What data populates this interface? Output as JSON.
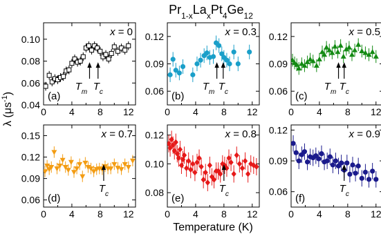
{
  "figure": {
    "title_main": "Pr",
    "title_sub1": "1-x",
    "title_mid1": "La",
    "title_sub2": "x",
    "title_mid2": "Pt",
    "title_sub3": "4",
    "title_mid3": "Ge",
    "title_sub4": "12",
    "ylabel_main": "λ (μs",
    "ylabel_sup": "-1",
    "ylabel_end": ")",
    "xlabel": "Temperature (K)"
  },
  "chart_data": [
    {
      "type": "scatter",
      "panel": "(a)",
      "label": "x = 0",
      "marker": "square-open",
      "color": "#000000",
      "xlim": [
        0,
        13
      ],
      "ylim": [
        0.04,
        0.115
      ],
      "xticks": [
        0,
        4,
        8,
        12
      ],
      "yticks": [
        0.04,
        0.06,
        0.08,
        0.1
      ],
      "ytick_labels": [
        "0.04",
        "0.06",
        "0.08",
        "0.10"
      ],
      "x": [
        0.3,
        0.8,
        1.2,
        1.6,
        2.0,
        2.4,
        2.8,
        3.2,
        3.6,
        4.0,
        4.4,
        4.8,
        5.2,
        5.6,
        6.0,
        6.4,
        6.8,
        7.2,
        7.6,
        8.0,
        8.4,
        8.8,
        9.2,
        9.6,
        10.0,
        10.5,
        11.0,
        11.5,
        12.0
      ],
      "y": [
        0.057,
        0.067,
        0.061,
        0.064,
        0.063,
        0.065,
        0.066,
        0.071,
        0.072,
        0.078,
        0.082,
        0.079,
        0.08,
        0.084,
        0.092,
        0.094,
        0.09,
        0.094,
        0.092,
        0.089,
        0.084,
        0.086,
        0.082,
        0.087,
        0.093,
        0.089,
        0.092,
        0.09,
        0.094
      ],
      "err": 0.004,
      "markers": [
        {
          "name": "T_m",
          "x": 6.5
        },
        {
          "name": "T_c",
          "x": 7.7
        }
      ]
    },
    {
      "type": "scatter",
      "panel": "(b)",
      "label": "x = 0.3",
      "marker": "circle",
      "color": "#1a9fc9",
      "xlim": [
        0,
        13
      ],
      "ylim": [
        0.045,
        0.135
      ],
      "xticks": [
        0,
        4,
        8,
        12
      ],
      "yticks": [
        0.06,
        0.09,
        0.12
      ],
      "ytick_labels": [
        "0.06",
        "0.09",
        "0.12"
      ],
      "x": [
        0.4,
        0.8,
        1.2,
        1.7,
        2.2,
        3.6,
        4.2,
        4.7,
        5.2,
        5.6,
        6.0,
        6.5,
        6.9,
        7.3,
        7.7,
        8.0,
        8.4,
        8.8,
        9.4,
        10.0,
        11.6
      ],
      "y": [
        0.078,
        0.095,
        0.083,
        0.08,
        0.087,
        0.078,
        0.09,
        0.094,
        0.099,
        0.102,
        0.097,
        0.098,
        0.113,
        0.11,
        0.101,
        0.097,
        0.094,
        0.09,
        0.103,
        0.09,
        0.103
      ],
      "err": 0.008,
      "markers": [
        {
          "name": "T_m",
          "x": 7.0
        },
        {
          "name": "T_c",
          "x": 7.9
        }
      ]
    },
    {
      "type": "scatter",
      "panel": "(c)",
      "label": "x = 0.5",
      "marker": "triangle-up",
      "color": "#138a13",
      "xlim": [
        0,
        13
      ],
      "ylim": [
        0.045,
        0.135
      ],
      "xticks": [
        0,
        4,
        8,
        12
      ],
      "yticks": [
        0.06,
        0.09,
        0.12
      ],
      "ytick_labels": [
        "0.06",
        "0.09",
        "0.12"
      ],
      "x": [
        0.2,
        0.5,
        0.8,
        1.1,
        1.5,
        1.9,
        2.3,
        2.7,
        3.1,
        3.6,
        4.0,
        4.4,
        4.7,
        5.0,
        5.4,
        5.8,
        6.2,
        6.6,
        7.0,
        7.4,
        7.8,
        8.2,
        8.6,
        9.0,
        9.5,
        10.0,
        10.5,
        11.0,
        11.5,
        12.0
      ],
      "y": [
        0.094,
        0.091,
        0.089,
        0.085,
        0.09,
        0.088,
        0.092,
        0.095,
        0.093,
        0.088,
        0.095,
        0.103,
        0.1,
        0.108,
        0.105,
        0.102,
        0.109,
        0.103,
        0.11,
        0.098,
        0.106,
        0.108,
        0.1,
        0.105,
        0.111,
        0.104,
        0.102,
        0.1,
        0.103,
        0.098
      ],
      "err": 0.007,
      "markers": [
        {
          "name": "T_m",
          "x": 6.7
        },
        {
          "name": "T_c",
          "x": 7.5
        }
      ]
    },
    {
      "type": "scatter",
      "panel": "(d)",
      "label": "x = 0.7",
      "marker": "triangle-down",
      "color": "#f39c12",
      "xlim": [
        0,
        13
      ],
      "ylim": [
        0.05,
        0.165
      ],
      "xticks": [
        0,
        4,
        8,
        12
      ],
      "yticks": [
        0.06,
        0.09,
        0.12,
        0.15
      ],
      "ytick_labels": [
        "0.06",
        "0.09",
        "0.12",
        "0.15"
      ],
      "x": [
        0.2,
        0.5,
        0.8,
        1.1,
        1.5,
        1.9,
        2.3,
        2.7,
        3.1,
        3.5,
        3.9,
        4.3,
        4.7,
        5.1,
        5.5,
        5.9,
        6.3,
        6.7,
        7.1,
        7.5,
        7.9,
        8.3,
        8.7,
        9.1,
        9.5,
        10.0,
        10.5,
        11.0,
        11.5,
        12.0,
        12.6
      ],
      "y": [
        0.1,
        0.108,
        0.103,
        0.106,
        0.127,
        0.104,
        0.108,
        0.116,
        0.106,
        0.102,
        0.113,
        0.099,
        0.104,
        0.11,
        0.093,
        0.112,
        0.106,
        0.104,
        0.1,
        0.103,
        0.104,
        0.103,
        0.107,
        0.104,
        0.104,
        0.11,
        0.105,
        0.103,
        0.11,
        0.106,
        0.115
      ],
      "err": 0.008,
      "markers": [
        {
          "name": "T_c",
          "x": 8.5
        }
      ]
    },
    {
      "type": "scatter",
      "panel": "(e)",
      "label": "x = 0.8",
      "marker": "diamond",
      "color": "#e61919",
      "xlim": [
        0,
        13
      ],
      "ylim": [
        0.07,
        0.127
      ],
      "xticks": [
        0,
        4,
        8,
        12
      ],
      "yticks": [
        0.08,
        0.1,
        0.12
      ],
      "ytick_labels": [
        "0.08",
        "0.10",
        "0.12"
      ],
      "x": [
        0.2,
        0.4,
        0.6,
        0.8,
        1.0,
        1.2,
        1.4,
        1.6,
        1.8,
        2.0,
        2.2,
        2.4,
        2.7,
        3.0,
        3.3,
        3.6,
        3.9,
        4.2,
        4.5,
        4.8,
        5.1,
        5.4,
        5.7,
        6.0,
        6.3,
        6.6,
        6.9,
        7.2,
        7.5,
        7.8,
        8.1,
        8.4,
        8.7,
        9.0,
        9.4,
        9.8,
        10.2,
        10.6,
        11.0,
        11.4,
        11.8,
        12.2,
        12.6
      ],
      "y": [
        0.114,
        0.111,
        0.117,
        0.113,
        0.109,
        0.115,
        0.107,
        0.104,
        0.11,
        0.099,
        0.103,
        0.106,
        0.097,
        0.102,
        0.096,
        0.1,
        0.094,
        0.101,
        0.104,
        0.098,
        0.089,
        0.094,
        0.087,
        0.099,
        0.091,
        0.089,
        0.095,
        0.095,
        0.093,
        0.1,
        0.099,
        0.097,
        0.104,
        0.101,
        0.093,
        0.106,
        0.1,
        0.097,
        0.102,
        0.093,
        0.1,
        0.099,
        0.098
      ],
      "err": 0.006,
      "markers": [
        {
          "name": "T_c",
          "x": 8.0
        }
      ]
    },
    {
      "type": "scatter",
      "panel": "(f)",
      "label": "x = 0.9",
      "marker": "circle",
      "color": "#1a1a8c",
      "xlim": [
        0,
        13
      ],
      "ylim": [
        0.045,
        0.125
      ],
      "xticks": [
        0,
        4,
        8,
        12
      ],
      "yticks": [
        0.06,
        0.09,
        0.12
      ],
      "ytick_labels": [
        "0.06",
        "0.09",
        "0.12"
      ],
      "x": [
        0.3,
        0.7,
        1.1,
        1.5,
        1.9,
        2.3,
        2.7,
        3.1,
        3.5,
        3.9,
        4.3,
        4.7,
        5.1,
        5.5,
        5.9,
        6.3,
        6.7,
        7.1,
        7.5,
        7.9,
        8.3,
        8.7,
        9.1,
        9.5,
        10.0,
        10.5,
        11.0,
        11.5,
        12.0
      ],
      "y": [
        0.107,
        0.098,
        0.09,
        0.096,
        0.099,
        0.089,
        0.094,
        0.093,
        0.095,
        0.092,
        0.097,
        0.089,
        0.09,
        0.094,
        0.086,
        0.09,
        0.085,
        0.088,
        0.081,
        0.088,
        0.077,
        0.086,
        0.078,
        0.085,
        0.073,
        0.079,
        0.072,
        0.08,
        0.072
      ],
      "err": 0.008,
      "markers": [
        {
          "name": "T_c",
          "x": 7.5
        }
      ]
    }
  ]
}
